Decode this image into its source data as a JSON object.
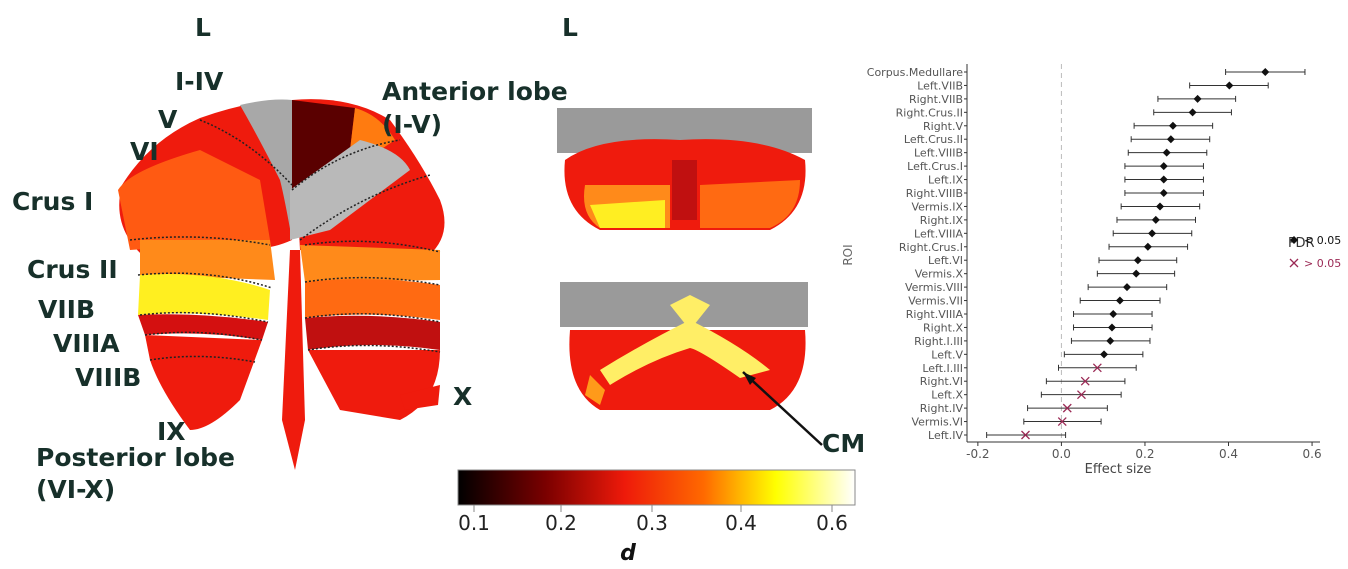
{
  "flatmap": {
    "side_label": "L",
    "labels": [
      "I-IV",
      "V",
      "VI",
      "Crus I",
      "Crus II",
      "VIIB",
      "VIIIA",
      "VIIIB",
      "IX",
      "Posterior lobe",
      "(VI-X)",
      "Anterior lobe",
      "(I-V)",
      "X"
    ]
  },
  "slices": {
    "side_label": "L",
    "arrow_label": "CM"
  },
  "colorbar": {
    "label": "d",
    "ticks": [
      0.1,
      0.2,
      0.3,
      0.4,
      0.6
    ]
  },
  "chart_data": {
    "type": "forest",
    "x_label": "Effect size",
    "y_label": "ROI",
    "legend_title": "FDR",
    "categories": [
      "Corpus.Medullare",
      "Left.VIIB",
      "Right.VIIB",
      "Right.Crus.II",
      "Right.V",
      "Left.Crus.II",
      "Left.VIIIB",
      "Left.Crus.I",
      "Left.IX",
      "Right.VIIIB",
      "Vermis.IX",
      "Right.IX",
      "Left.VIIIA",
      "Right.Crus.I",
      "Left.VI",
      "Vermis.X",
      "Vermis.VIII",
      "Vermis.VII",
      "Right.VIIIA",
      "Right.X",
      "Right.I.III",
      "Left.V",
      "Left.I.III",
      "Right.VI",
      "Left.X",
      "Right.IV",
      "Vermis.VI",
      "Left.IV"
    ],
    "series": [
      {
        "name": "< 0.05",
        "color": "#111111",
        "marker": "diamond",
        "values": [
          0.488,
          0.402,
          0.326,
          0.314,
          0.267,
          0.262,
          0.252,
          0.245,
          0.245,
          0.245,
          0.236,
          0.226,
          0.217,
          0.207,
          0.183,
          0.179,
          0.157,
          0.14,
          0.124,
          0.121,
          0.117,
          0.102,
          null,
          null,
          null,
          null,
          null,
          null
        ]
      },
      {
        "name": "> 0.05",
        "color": "#9b2a55",
        "marker": "x",
        "values": [
          null,
          null,
          null,
          null,
          null,
          null,
          null,
          null,
          null,
          null,
          null,
          null,
          null,
          null,
          null,
          null,
          null,
          null,
          null,
          null,
          null,
          null,
          0.086,
          0.057,
          0.048,
          0.014,
          0.002,
          -0.086
        ]
      }
    ],
    "ci_low": [
      0.393,
      0.307,
      0.231,
      0.221,
      0.174,
      0.167,
      0.16,
      0.152,
      0.152,
      0.152,
      0.143,
      0.133,
      0.124,
      0.114,
      0.09,
      0.086,
      0.064,
      0.045,
      0.029,
      0.029,
      0.024,
      0.007,
      -0.007,
      -0.036,
      -0.048,
      -0.081,
      -0.09,
      -0.179
    ],
    "ci_high": [
      0.583,
      0.495,
      0.417,
      0.407,
      0.362,
      0.355,
      0.348,
      0.34,
      0.34,
      0.34,
      0.331,
      0.321,
      0.312,
      0.302,
      0.276,
      0.271,
      0.252,
      0.236,
      0.217,
      0.217,
      0.212,
      0.195,
      0.179,
      0.152,
      0.143,
      0.11,
      0.095,
      0.01
    ],
    "xlim": [
      -0.226,
      0.619
    ],
    "xticks": [
      -0.2,
      {
        "value": 0,
        "label": "0.0"
      },
      0.2,
      0.4,
      0.6
    ],
    "vline": 0
  }
}
